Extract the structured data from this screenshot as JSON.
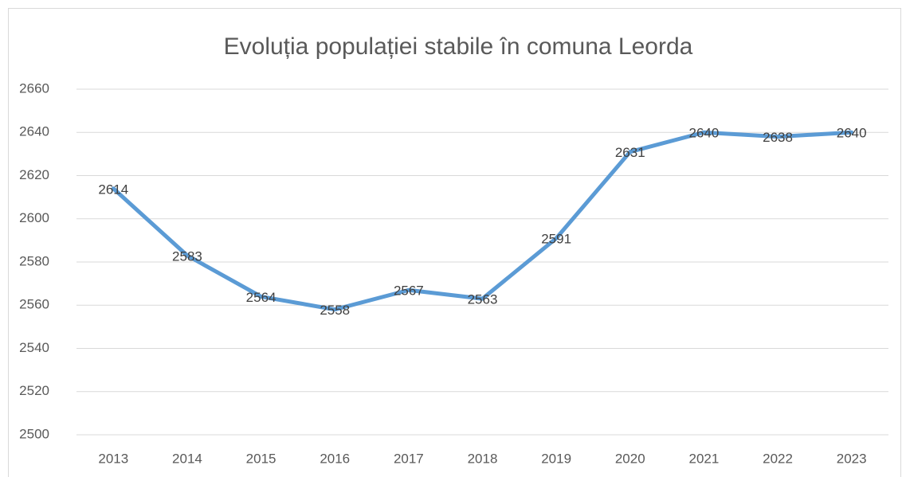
{
  "chart_data": {
    "type": "line",
    "title": "Evoluția populației stabile în comuna Leorda",
    "categories": [
      "2013",
      "2014",
      "2015",
      "2016",
      "2017",
      "2018",
      "2019",
      "2020",
      "2021",
      "2022",
      "2023"
    ],
    "values": [
      2614,
      2583,
      2564,
      2558,
      2567,
      2563,
      2591,
      2631,
      2640,
      2638,
      2640
    ],
    "color": "#5b9bd5",
    "ylim": [
      2500,
      2660
    ],
    "yticks": [
      2500,
      2520,
      2540,
      2560,
      2580,
      2600,
      2620,
      2640,
      2660
    ],
    "grid": true
  }
}
